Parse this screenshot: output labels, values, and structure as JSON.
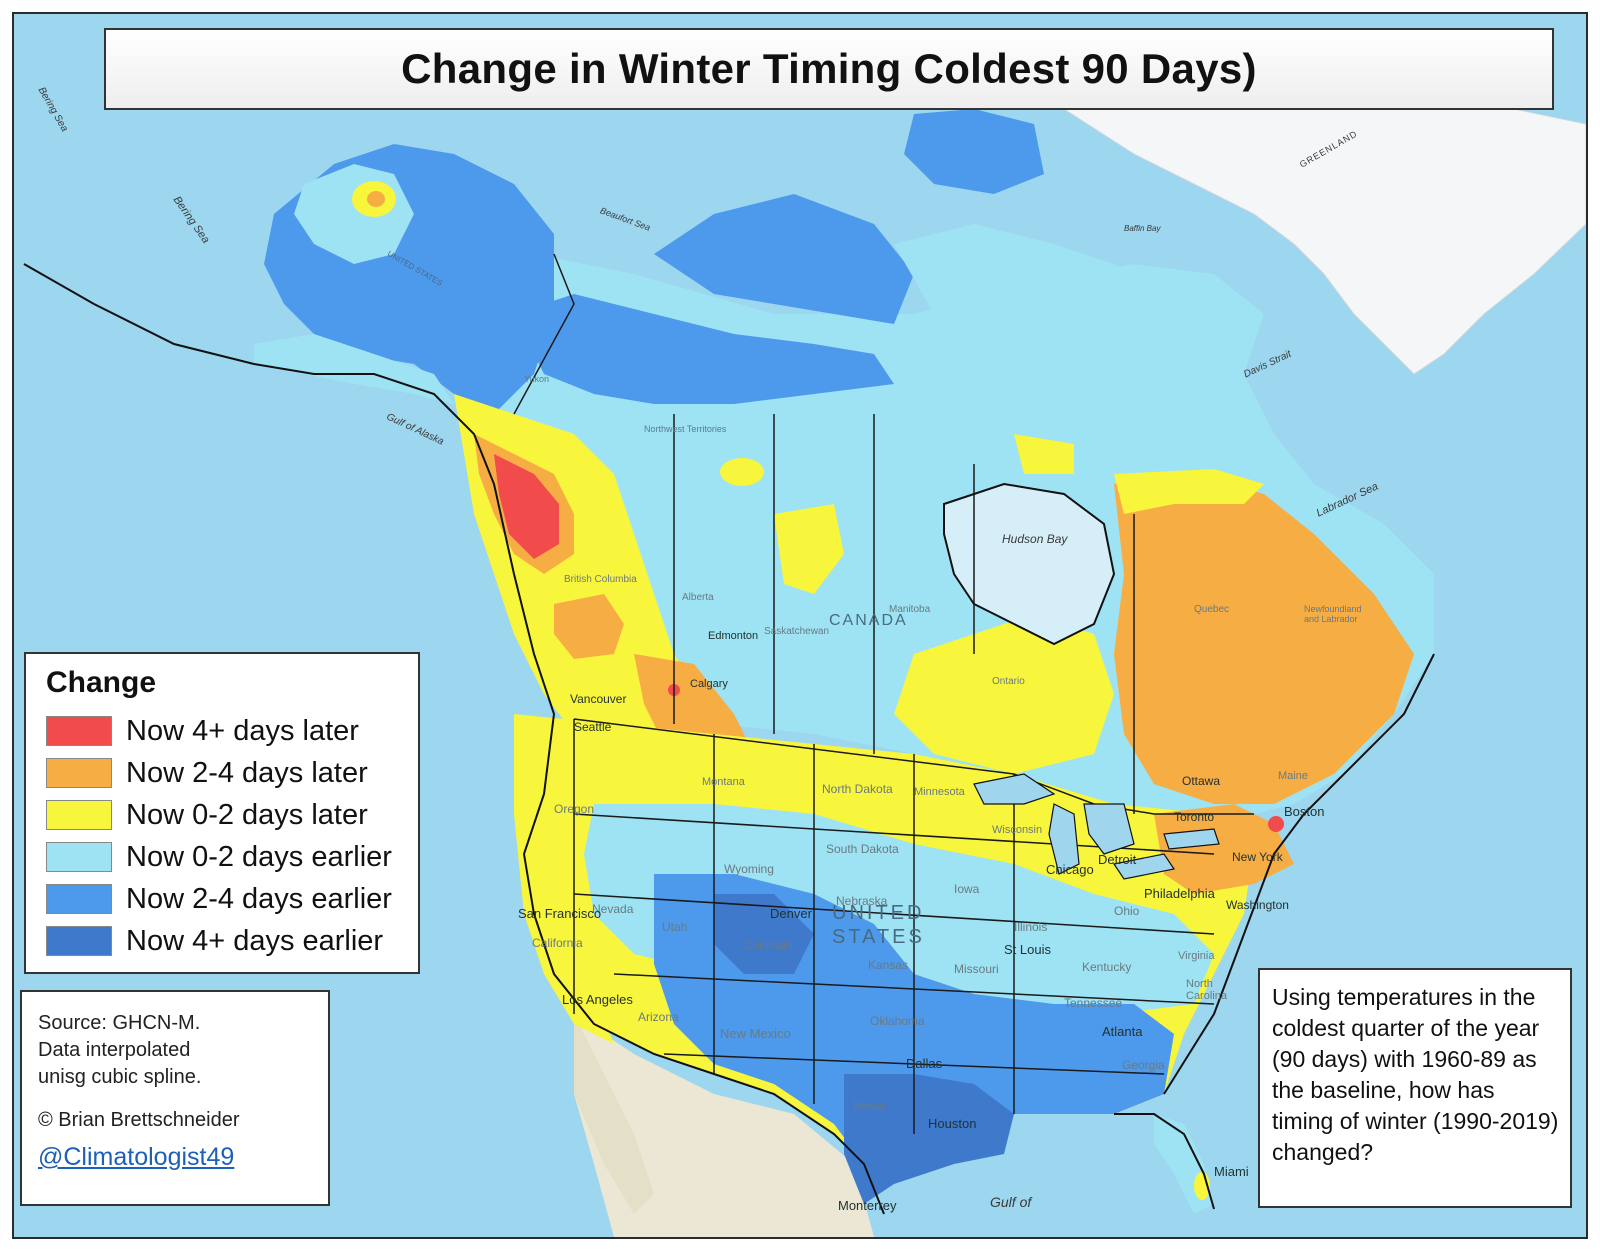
{
  "title": "Change in Winter Timing Coldest 90 Days)",
  "legend": {
    "title": "Change",
    "items": [
      {
        "label": "Now 4+ days later",
        "color": "#f24b4b"
      },
      {
        "label": "Now 2-4 days later",
        "color": "#f5ad44"
      },
      {
        "label": "Now 0-2 days later",
        "color": "#f8f53d"
      },
      {
        "label": "Now 0-2 days earlier",
        "color": "#9ee3f3"
      },
      {
        "label": "Now 2-4 days earlier",
        "color": "#4d99ec"
      },
      {
        "label": "Now 4+ days earlier",
        "color": "#3f79cc"
      }
    ]
  },
  "source": {
    "line1": "Source: GHCN-M.",
    "line2": "Data interpolated",
    "line3": "unisg cubic spline.",
    "copyright": "© Brian Brettschneider",
    "handle": "@Climatologist49"
  },
  "note": "Using temperatures in the coldest quarter of the year (90 days) with 1960-89 as the baseline, how  has timing of winter (1990-2019) changed?",
  "colors": {
    "ocean": "#8fd0ec",
    "land_base": "#eae6d6",
    "greenland": "#f4f6f7",
    "border": "#1a1a1a"
  },
  "place_labels": {
    "bering_sea_1": "Bering Sea",
    "bering_sea_2": "Bering Sea",
    "beaufort_sea": "Beaufort Sea",
    "gulf_of_alaska": "Gulf of Alaska",
    "hudson_bay": "Hudson Bay",
    "davis_strait": "Davis Strait",
    "labrador_sea": "Labrador Sea",
    "baffin_bay": "Baffin Bay",
    "greenland": "GREENLAND",
    "canada": "CANADA",
    "united_states_1": "UNITED",
    "united_states_2": "STATES",
    "gulf_of": "Gulf of",
    "edmonton": "Edmonton",
    "calgary": "Calgary",
    "vancouver": "Vancouver",
    "seattle": "Seattle",
    "denver": "Denver",
    "san_francisco": "San Francisco",
    "los_angeles": "Los Angeles",
    "chicago": "Chicago",
    "detroit": "Detroit",
    "toronto": "Toronto",
    "ottawa": "Ottawa",
    "boston": "Boston",
    "new_york": "New York",
    "philadelphia": "Philadelphia",
    "washington": "Washington",
    "st_louis": "St Louis",
    "atlanta": "Atlanta",
    "dallas": "Dallas",
    "houston": "Houston",
    "miami": "Miami",
    "monterrey": "Monterrey",
    "alberta": "Alberta",
    "saskatchewan": "Saskatchewan",
    "manitoba": "Manitoba",
    "ontario": "Ontario",
    "quebec": "Quebec",
    "newfoundland": "Newfoundland and Labrador",
    "british_columbia": "British Columbia",
    "yukon": "Yukon",
    "northwest_territories": "Northwest Territories",
    "montana": "Montana",
    "north_dakota": "North Dakota",
    "south_dakota": "South Dakota",
    "minnesota": "Minnesota",
    "wisconsin": "Wisconsin",
    "wyoming": "Wyoming",
    "nebraska": "Nebraska",
    "kansas": "Kansas",
    "oklahoma": "Oklahoma",
    "texas": "Texas",
    "new_mexico": "New Mexico",
    "arizona": "Arizona",
    "utah": "Utah",
    "nevada": "Nevada",
    "oregon": "Oregon",
    "colorado": "Colorado",
    "iowa": "Iowa",
    "missouri": "Missouri",
    "illinois": "Illinois",
    "kentucky": "Kentucky",
    "tennessee": "Tennessee",
    "georgia": "Georgia",
    "ohio": "Ohio",
    "california": "California",
    "united_states_ak": "UNITED STATES",
    "maine": "Maine",
    "north_carolina": "North Carolina",
    "virginia": "Virginia"
  }
}
